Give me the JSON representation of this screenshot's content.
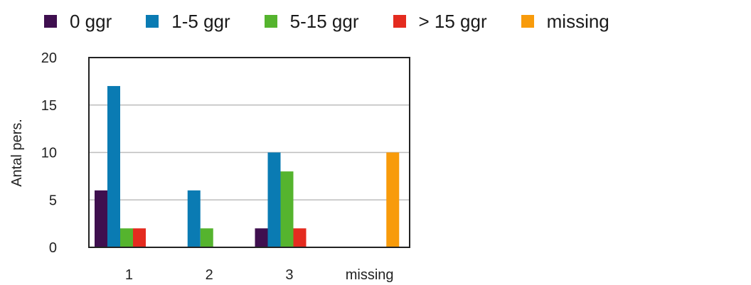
{
  "chart_data": {
    "type": "bar",
    "categories": [
      "1",
      "2",
      "3",
      "missing"
    ],
    "series": [
      {
        "name": "0 ggr",
        "color": "#3f0f4f",
        "values": [
          6,
          0,
          2,
          0
        ]
      },
      {
        "name": "1-5 ggr",
        "color": "#0a7bb3",
        "values": [
          17,
          6,
          10,
          0
        ]
      },
      {
        "name": "5-15 ggr",
        "color": "#55b42e",
        "values": [
          2,
          2,
          8,
          0
        ]
      },
      {
        "name": "> 15 ggr",
        "color": "#e42b1f",
        "values": [
          2,
          0,
          2,
          0
        ]
      },
      {
        "name": "missing",
        "color": "#f89b0b",
        "values": [
          0,
          0,
          0,
          10
        ]
      }
    ],
    "ylabel": "Antal pers.",
    "xlabel": "",
    "ylim": [
      0,
      20
    ],
    "yticks": [
      0,
      5,
      10,
      15,
      20
    ],
    "grid": true,
    "legend_position": "top"
  }
}
